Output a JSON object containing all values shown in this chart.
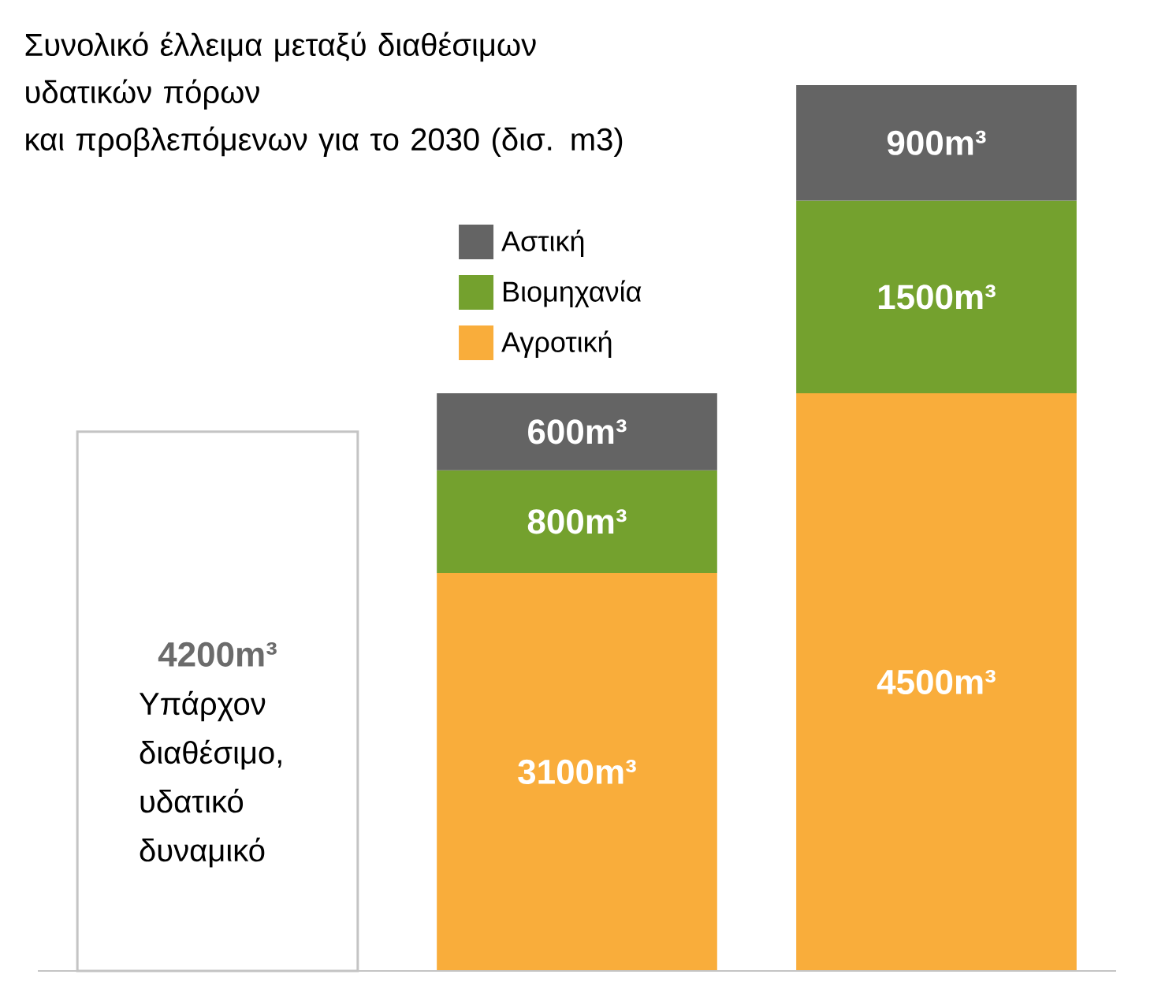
{
  "chart_data": {
    "type": "bar",
    "stacked": true,
    "title": "Συνολικό έλλειμα μεταξύ διαθέσιμων\nυδατικών πόρων\nκαι προβλεπόμενων για το 2030 (δισ. m3)",
    "categories": [
      "Υπάρχον\nδιαθέσιμο,\nυδατικό\nδυναμικό",
      null,
      null
    ],
    "series": [
      {
        "color": "#ffffff",
        "values": [
          4200,
          null,
          null
        ],
        "value_labels": [
          "4200m³",
          null,
          null
        ]
      },
      {
        "name": "Αγροτική",
        "color": "#f9ad3b",
        "values": [
          null,
          3100,
          4500
        ],
        "value_labels": [
          null,
          "3100m³",
          "4500m³"
        ]
      },
      {
        "name": "Βιομηχανία",
        "color": "#74a12e",
        "values": [
          null,
          800,
          1500
        ],
        "value_labels": [
          null,
          "800m³",
          "1500m³"
        ]
      },
      {
        "name": "Αστική",
        "color": "#646464",
        "values": [
          null,
          600,
          900
        ],
        "value_labels": [
          null,
          "600m³",
          "900m³"
        ]
      }
    ],
    "legend": "top",
    "tick_labels": "x"
  }
}
